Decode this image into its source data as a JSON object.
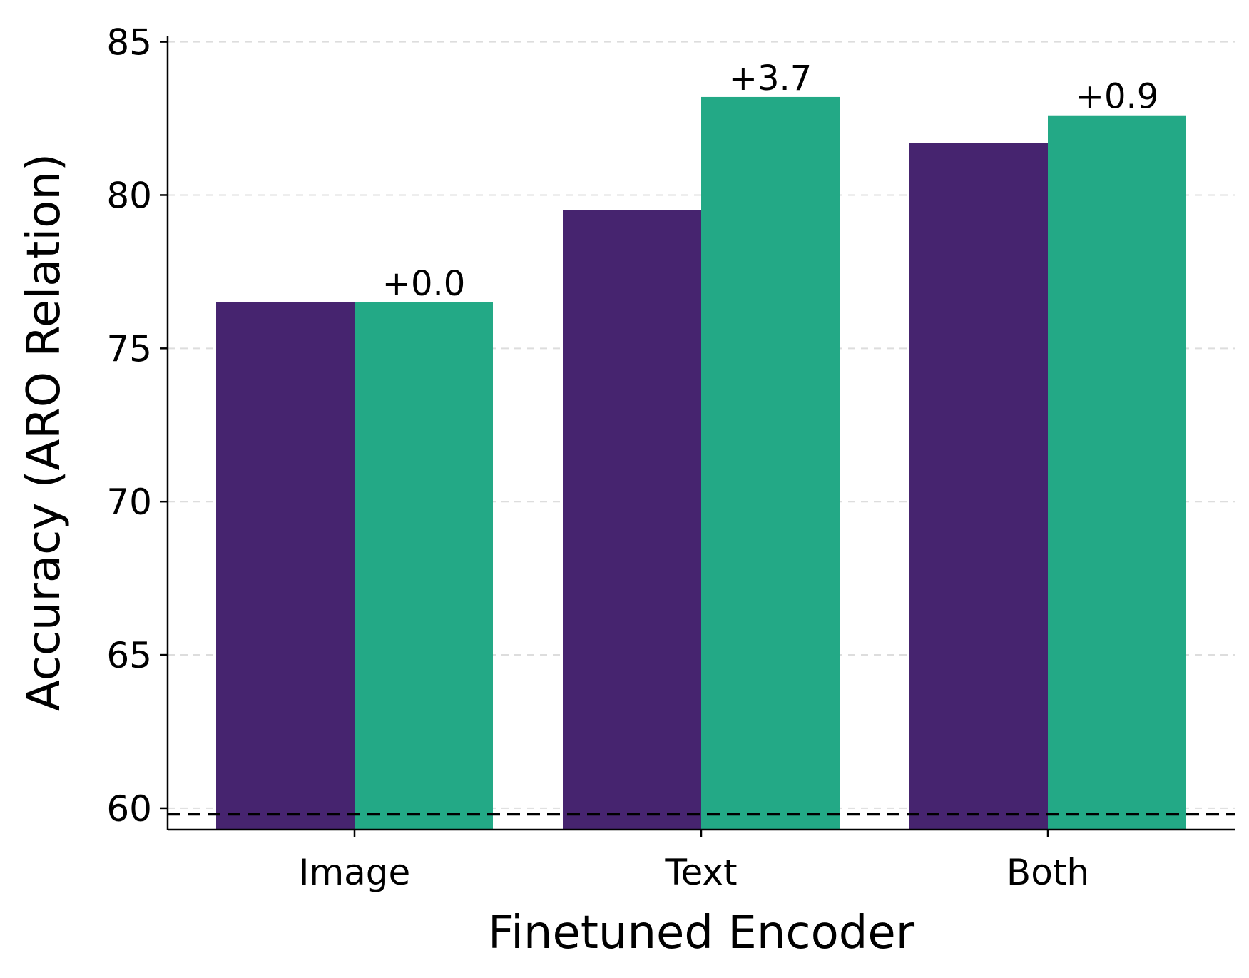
{
  "chart_data": {
    "type": "bar",
    "categories": [
      "Image",
      "Text",
      "Both"
    ],
    "series": [
      {
        "values": [
          76.5,
          79.5,
          81.7
        ],
        "color": "#46246f"
      },
      {
        "values": [
          76.5,
          83.2,
          82.6
        ],
        "color": "#23a986"
      }
    ],
    "bar_labels": [
      "+0.0",
      "+3.7",
      "+0.9"
    ],
    "xlabel": "Finetuned Encoder",
    "ylabel": "Accuracy (ARO Relation)",
    "ylim": [
      59.3,
      85.2
    ],
    "yticks": [
      60,
      65,
      70,
      75,
      80,
      85
    ],
    "reference_line": {
      "value": 59.8,
      "style": "dashed",
      "color": "#000000"
    },
    "grid": {
      "axis": "y",
      "style": "dashed"
    },
    "legend": "none"
  }
}
